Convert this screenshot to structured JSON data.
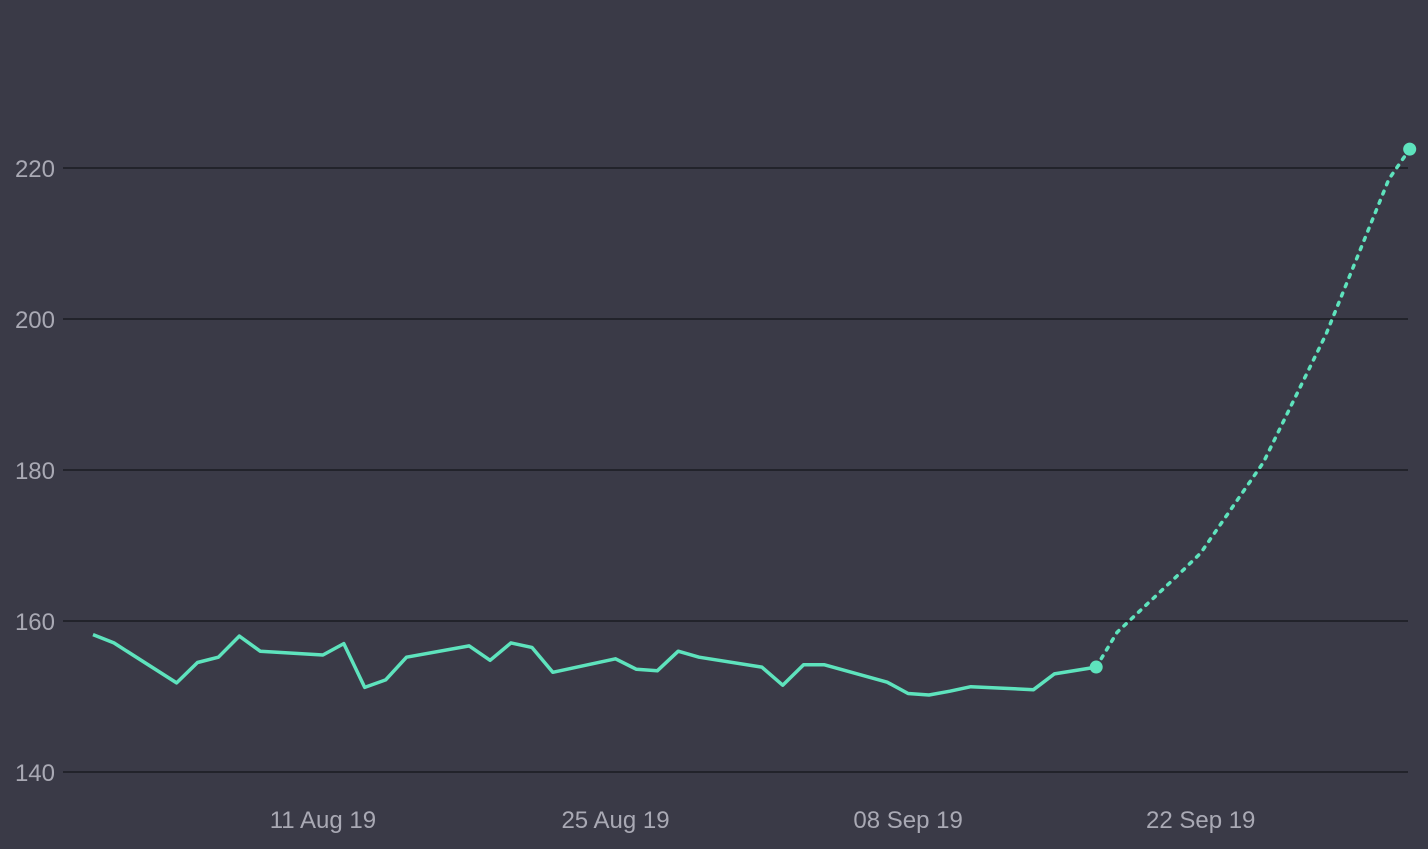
{
  "colors": {
    "background": "#3a3a47",
    "grid": "#22232b",
    "tick_text": "#a9a9b4",
    "series": "#5ee3bd"
  },
  "chart_data": {
    "type": "line",
    "title": "",
    "xlabel": "",
    "ylabel": "",
    "grid": "horizontal",
    "legend": "none",
    "ylim": [
      140,
      225
    ],
    "xlim": [
      "2019-07-31",
      "2019-10-02"
    ],
    "y_ticks": [
      {
        "value": 140,
        "label": "140"
      },
      {
        "value": 160,
        "label": "160"
      },
      {
        "value": 180,
        "label": "180"
      },
      {
        "value": 200,
        "label": "200"
      },
      {
        "value": 220,
        "label": "220"
      }
    ],
    "x_ticks": [
      {
        "value": "2019-08-11",
        "label": "11 Aug 19"
      },
      {
        "value": "2019-08-25",
        "label": "25 Aug 19"
      },
      {
        "value": "2019-09-08",
        "label": "08 Sep 19"
      },
      {
        "value": "2019-09-22",
        "label": "22 Sep 19"
      }
    ],
    "series": [
      {
        "style": "solid",
        "end_marker": true,
        "points": [
          {
            "x": "2019-07-31",
            "y": 158.2
          },
          {
            "x": "2019-08-01",
            "y": 157.1
          },
          {
            "x": "2019-08-04",
            "y": 151.8
          },
          {
            "x": "2019-08-05",
            "y": 154.5
          },
          {
            "x": "2019-08-06",
            "y": 155.2
          },
          {
            "x": "2019-08-07",
            "y": 158.0
          },
          {
            "x": "2019-08-08",
            "y": 156.0
          },
          {
            "x": "2019-08-11",
            "y": 155.5
          },
          {
            "x": "2019-08-12",
            "y": 157.0
          },
          {
            "x": "2019-08-13",
            "y": 151.2
          },
          {
            "x": "2019-08-14",
            "y": 152.2
          },
          {
            "x": "2019-08-15",
            "y": 155.2
          },
          {
            "x": "2019-08-18",
            "y": 156.7
          },
          {
            "x": "2019-08-19",
            "y": 154.8
          },
          {
            "x": "2019-08-20",
            "y": 157.1
          },
          {
            "x": "2019-08-21",
            "y": 156.5
          },
          {
            "x": "2019-08-22",
            "y": 153.2
          },
          {
            "x": "2019-08-25",
            "y": 155.0
          },
          {
            "x": "2019-08-26",
            "y": 153.6
          },
          {
            "x": "2019-08-27",
            "y": 153.4
          },
          {
            "x": "2019-08-28",
            "y": 156.0
          },
          {
            "x": "2019-08-29",
            "y": 155.2
          },
          {
            "x": "2019-09-01",
            "y": 153.9
          },
          {
            "x": "2019-09-02",
            "y": 151.5
          },
          {
            "x": "2019-09-03",
            "y": 154.2
          },
          {
            "x": "2019-09-04",
            "y": 154.2
          },
          {
            "x": "2019-09-07",
            "y": 151.9
          },
          {
            "x": "2019-09-08",
            "y": 150.4
          },
          {
            "x": "2019-09-09",
            "y": 150.2
          },
          {
            "x": "2019-09-10",
            "y": 150.7
          },
          {
            "x": "2019-09-11",
            "y": 151.3
          },
          {
            "x": "2019-09-14",
            "y": 150.9
          },
          {
            "x": "2019-09-15",
            "y": 153.0
          },
          {
            "x": "2019-09-17",
            "y": 153.9
          }
        ]
      },
      {
        "style": "dotted",
        "end_marker": true,
        "points": [
          {
            "x": "2019-09-17",
            "y": 153.9
          },
          {
            "x": "2019-09-18",
            "y": 158.5
          },
          {
            "x": "2019-09-21",
            "y": 166.3
          },
          {
            "x": "2019-09-22",
            "y": 169.0
          },
          {
            "x": "2019-09-25",
            "y": 181.0
          },
          {
            "x": "2019-09-28",
            "y": 198.0
          },
          {
            "x": "2019-10-01",
            "y": 218.5
          },
          {
            "x": "2019-10-02",
            "y": 222.5
          }
        ]
      }
    ]
  }
}
